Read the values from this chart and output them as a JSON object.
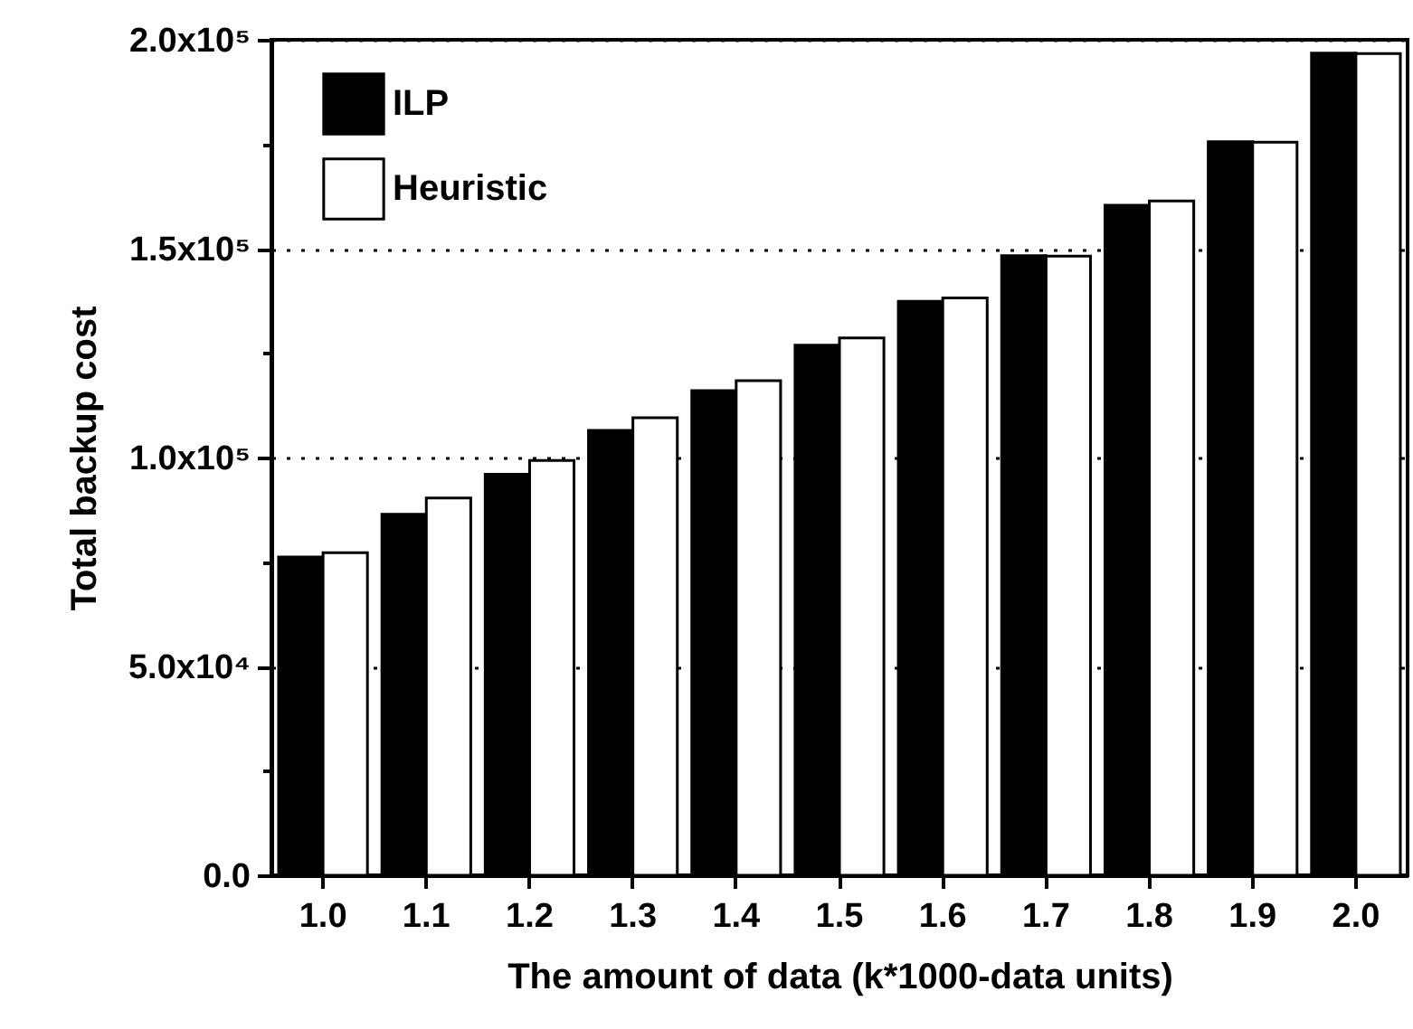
{
  "chart_data": {
    "type": "bar",
    "xlabel": "The amount of data (k*1000-data units)",
    "ylabel": "Total backup cost",
    "categories": [
      "1.0",
      "1.1",
      "1.2",
      "1.3",
      "1.4",
      "1.5",
      "1.6",
      "1.7",
      "1.8",
      "1.9",
      "2.0"
    ],
    "series": [
      {
        "name": "ILP",
        "color": "#000000",
        "values": [
          76200,
          86400,
          96000,
          106500,
          116000,
          126900,
          137400,
          148300,
          160400,
          175600,
          196800
        ]
      },
      {
        "name": "Heuristic",
        "color": "#ffffff",
        "values": [
          77200,
          90300,
          99300,
          109500,
          118400,
          128600,
          138200,
          148200,
          161400,
          175500,
          196700
        ]
      }
    ],
    "ylim": [
      0,
      200000
    ],
    "yticks": [
      {
        "value": 0,
        "label": "0.0"
      },
      {
        "value": 25000,
        "label": null
      },
      {
        "value": 50000,
        "label": "5.0x10⁴"
      },
      {
        "value": 75000,
        "label": null
      },
      {
        "value": 100000,
        "label": "1.0x10⁵"
      },
      {
        "value": 125000,
        "label": null
      },
      {
        "value": 150000,
        "label": "1.5x10⁵"
      },
      {
        "value": 175000,
        "label": null
      },
      {
        "value": 200000,
        "label": "2.0x10⁵"
      }
    ],
    "grid": "y",
    "legend": "top left"
  }
}
